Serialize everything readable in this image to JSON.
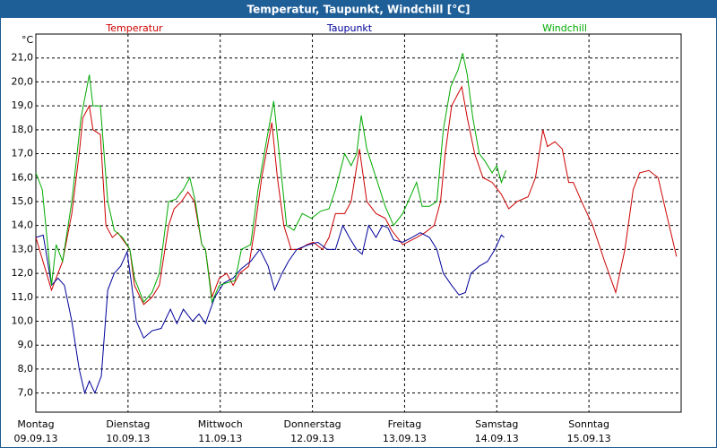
{
  "chart_data": {
    "type": "line",
    "title": "Temperatur, Taupunkt, Windchill [°C]",
    "y_label": "°C",
    "xlim": [
      0,
      7
    ],
    "xticks": [
      0,
      1,
      2,
      3,
      4,
      5,
      6,
      7
    ],
    "xtick_labels": [
      {
        "day": "Montag",
        "date": "09.09.13"
      },
      {
        "day": "Dienstag",
        "date": "10.09.13"
      },
      {
        "day": "Mittwoch",
        "date": "11.09.13"
      },
      {
        "day": "Donnerstag",
        "date": "12.09.13"
      },
      {
        "day": "Freitag",
        "date": "13.09.13"
      },
      {
        "day": "Samstag",
        "date": "14.09.13"
      },
      {
        "day": "Sonntag",
        "date": "15.09.13"
      }
    ],
    "ylim": [
      6.2,
      22.0
    ],
    "yticks": [
      {
        "value": 7,
        "label": "7,0"
      },
      {
        "value": 8,
        "label": "8,0"
      },
      {
        "value": 9,
        "label": "9,0"
      },
      {
        "value": 10,
        "label": "10,0"
      },
      {
        "value": 11,
        "label": "11,0"
      },
      {
        "value": 12,
        "label": "12,0"
      },
      {
        "value": 13,
        "label": "13,0"
      },
      {
        "value": 14,
        "label": "14,0"
      },
      {
        "value": 15,
        "label": "15,0"
      },
      {
        "value": 16,
        "label": "16,0"
      },
      {
        "value": 17,
        "label": "17,0"
      },
      {
        "value": 18,
        "label": "18,0"
      },
      {
        "value": 19,
        "label": "19,0"
      },
      {
        "value": 20,
        "label": "20,0"
      },
      {
        "value": 21,
        "label": "21,0"
      }
    ],
    "grid": true,
    "series": [
      {
        "name": "Temperatur",
        "color": "#cc0000",
        "x": [
          0.0,
          0.17,
          0.29,
          0.39,
          0.47,
          0.51,
          0.58,
          0.62,
          0.7,
          0.76,
          0.83,
          0.89,
          1.02,
          1.07,
          1.17,
          1.26,
          1.34,
          1.44,
          1.5,
          1.58,
          1.65,
          1.72,
          1.8,
          1.84,
          1.91,
          1.99,
          2.07,
          2.14,
          2.21,
          2.31,
          2.38,
          2.45,
          2.56,
          2.62,
          2.69,
          2.77,
          2.86,
          2.94,
          3.01,
          3.11,
          3.18,
          3.25,
          3.35,
          3.42,
          3.51,
          3.59,
          3.69,
          3.79,
          3.86,
          3.98,
          4.13,
          4.22,
          4.32,
          4.39,
          4.44,
          4.51,
          4.62,
          4.68,
          4.76,
          4.85,
          4.95,
          5.05,
          5.13,
          5.22,
          5.34,
          5.42,
          5.5,
          5.55,
          5.63,
          5.71,
          5.78,
          5.83,
          5.92,
          6.04,
          6.17,
          6.29,
          6.39,
          6.48,
          6.55,
          6.65,
          6.75,
          6.84,
          6.95
        ],
        "values": [
          13.5,
          11.3,
          12.5,
          14.5,
          17,
          18.5,
          19,
          18,
          17.8,
          14,
          13.5,
          13.7,
          13,
          11.5,
          10.7,
          11,
          11.5,
          14,
          14.7,
          15,
          15.4,
          15,
          13.2,
          13,
          11,
          11.8,
          12,
          11.5,
          12,
          12.3,
          14,
          16,
          18.3,
          16,
          14,
          13,
          13,
          13.2,
          13.3,
          13,
          13.5,
          14.5,
          14.5,
          15,
          17.2,
          15,
          14.5,
          14.3,
          13.8,
          13.2,
          13.5,
          13.7,
          14,
          15,
          17,
          19,
          19.8,
          18.5,
          17,
          16,
          15.8,
          15.3,
          14.7,
          15,
          15.2,
          16,
          18,
          17.3,
          17.5,
          17.2,
          15.8,
          15.8,
          15,
          14,
          12.5,
          11.2,
          13,
          15.5,
          16.2,
          16.3,
          16,
          14.5,
          12.7
        ]
      },
      {
        "name": "Taupunkt",
        "color": "#000099",
        "x": [
          0.0,
          0.08,
          0.17,
          0.24,
          0.31,
          0.39,
          0.47,
          0.53,
          0.58,
          0.64,
          0.71,
          0.78,
          0.85,
          0.92,
          0.99,
          1.04,
          1.09,
          1.17,
          1.26,
          1.36,
          1.46,
          1.53,
          1.6,
          1.7,
          1.77,
          1.84,
          1.94,
          2.04,
          2.14,
          2.23,
          2.33,
          2.43,
          2.52,
          2.59,
          2.67,
          2.74,
          2.83,
          2.96,
          3.06,
          3.16,
          3.25,
          3.33,
          3.4,
          3.48,
          3.54,
          3.61,
          3.69,
          3.76,
          3.82,
          3.88,
          3.98,
          4.08,
          4.17,
          4.27,
          4.35,
          4.42,
          4.51,
          4.59,
          4.66,
          4.72,
          4.81,
          4.9,
          4.98,
          5.05,
          5.08
        ],
        "values": [
          13.5,
          13.6,
          11.5,
          11.8,
          11.5,
          10,
          8,
          7,
          7.5,
          7,
          7.7,
          11.3,
          12,
          12.3,
          12.9,
          11.5,
          10,
          9.3,
          9.6,
          9.7,
          10.5,
          9.9,
          10.5,
          10,
          10.3,
          9.9,
          11,
          11.6,
          11.8,
          12.2,
          12.5,
          13,
          12.3,
          11.3,
          12,
          12.5,
          13,
          13.2,
          13.3,
          13,
          13,
          14,
          13.5,
          13,
          12.8,
          14,
          13.5,
          14,
          13.9,
          13.4,
          13.3,
          13.5,
          13.7,
          13.5,
          13,
          12,
          11.5,
          11.1,
          11.2,
          12,
          12.3,
          12.5,
          13,
          13.6,
          13.5
        ]
      },
      {
        "name": "Windchill",
        "color": "#00aa00",
        "x": [
          0.0,
          0.07,
          0.17,
          0.22,
          0.29,
          0.39,
          0.49,
          0.58,
          0.62,
          0.7,
          0.78,
          0.85,
          0.94,
          1.02,
          1.07,
          1.17,
          1.26,
          1.34,
          1.44,
          1.52,
          1.6,
          1.67,
          1.73,
          1.8,
          1.84,
          1.91,
          1.99,
          2.07,
          2.16,
          2.23,
          2.33,
          2.41,
          2.5,
          2.58,
          2.64,
          2.72,
          2.8,
          2.89,
          2.99,
          3.09,
          3.18,
          3.25,
          3.35,
          3.42,
          3.48,
          3.53,
          3.59,
          3.69,
          3.79,
          3.88,
          3.98,
          4.13,
          4.19,
          4.27,
          4.35,
          4.42,
          4.5,
          4.58,
          4.63,
          4.68,
          4.74,
          4.81,
          4.87,
          4.95,
          5.0,
          5.05,
          5.1
        ],
        "values": [
          16.2,
          15.5,
          11.5,
          13.2,
          12.5,
          15,
          18.5,
          20.3,
          19,
          19,
          15,
          13.8,
          13.5,
          13,
          11.8,
          10.8,
          11.2,
          12,
          15,
          15.1,
          15.5,
          16,
          15,
          13.2,
          13,
          10.8,
          11.5,
          11.6,
          11.7,
          13,
          13.2,
          15.5,
          17.5,
          19.2,
          17,
          14,
          13.8,
          14.5,
          14.3,
          14.6,
          14.7,
          15.5,
          17,
          16.5,
          17,
          18.6,
          17.2,
          16,
          14.8,
          14,
          14.5,
          15.8,
          14.8,
          14.8,
          15,
          18,
          19.8,
          20.5,
          21.2,
          20.3,
          18.5,
          17,
          16.7,
          16.2,
          16.5,
          15.8,
          16.3
        ]
      }
    ]
  }
}
